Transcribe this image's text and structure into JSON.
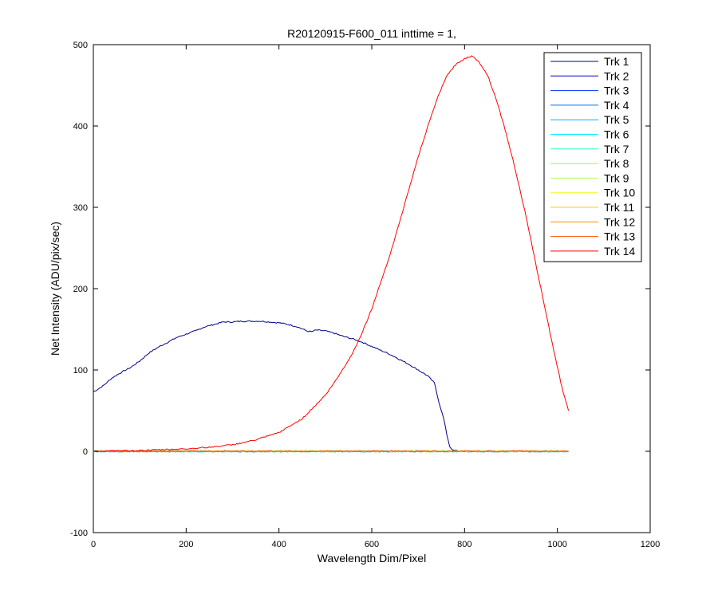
{
  "chart_data": {
    "type": "line",
    "title": "R20120915-F600_011 inttime = 1,",
    "xlabel": "Wavelength Dim/Pixel",
    "ylabel": "Net Intensity (ADU/pix/sec)",
    "xlim": [
      0,
      1200
    ],
    "ylim": [
      -100,
      500
    ],
    "xticks": [
      0,
      200,
      400,
      600,
      800,
      1000,
      1200
    ],
    "yticks": [
      -100,
      0,
      100,
      200,
      300,
      400,
      500
    ],
    "grid": false,
    "legend_position": "top-right",
    "series": [
      {
        "name": "Trk 1",
        "color": "#00008f",
        "points": [
          [
            0,
            73
          ],
          [
            20,
            80
          ],
          [
            40,
            90
          ],
          [
            60,
            97
          ],
          [
            80,
            103
          ],
          [
            100,
            111
          ],
          [
            120,
            121
          ],
          [
            140,
            128
          ],
          [
            160,
            134
          ],
          [
            180,
            140
          ],
          [
            200,
            144
          ],
          [
            220,
            148
          ],
          [
            240,
            153
          ],
          [
            260,
            156
          ],
          [
            280,
            159
          ],
          [
            300,
            159
          ],
          [
            320,
            160
          ],
          [
            340,
            160
          ],
          [
            360,
            160
          ],
          [
            380,
            159
          ],
          [
            400,
            158
          ],
          [
            420,
            156
          ],
          [
            440,
            153
          ],
          [
            460,
            148
          ],
          [
            470,
            147
          ],
          [
            480,
            149
          ],
          [
            500,
            148
          ],
          [
            520,
            145
          ],
          [
            540,
            141
          ],
          [
            560,
            138
          ],
          [
            580,
            134
          ],
          [
            600,
            129
          ],
          [
            620,
            124
          ],
          [
            640,
            119
          ],
          [
            660,
            113
          ],
          [
            680,
            107
          ],
          [
            700,
            100
          ],
          [
            720,
            93
          ],
          [
            735,
            84
          ],
          [
            745,
            60
          ],
          [
            755,
            40
          ],
          [
            762,
            20
          ],
          [
            768,
            6
          ],
          [
            775,
            1
          ],
          [
            800,
            0
          ],
          [
            1024,
            0
          ]
        ]
      },
      {
        "name": "Trk 2",
        "color": "#0000bf",
        "points": [
          [
            0,
            0
          ],
          [
            1024,
            0
          ]
        ]
      },
      {
        "name": "Trk 3",
        "color": "#0030ff",
        "points": [
          [
            0,
            0
          ],
          [
            1024,
            0
          ]
        ]
      },
      {
        "name": "Trk 4",
        "color": "#0070ff",
        "points": [
          [
            0,
            0
          ],
          [
            1024,
            0
          ]
        ]
      },
      {
        "name": "Trk 5",
        "color": "#00afff",
        "points": [
          [
            0,
            0
          ],
          [
            1024,
            0
          ]
        ]
      },
      {
        "name": "Trk 6",
        "color": "#00efff",
        "points": [
          [
            0,
            0
          ],
          [
            1024,
            0
          ]
        ]
      },
      {
        "name": "Trk 7",
        "color": "#30ffcf",
        "points": [
          [
            0,
            0
          ],
          [
            1024,
            0
          ]
        ]
      },
      {
        "name": "Trk 8",
        "color": "#70ff8f",
        "points": [
          [
            0,
            0
          ],
          [
            1024,
            0
          ]
        ]
      },
      {
        "name": "Trk 9",
        "color": "#afff50",
        "points": [
          [
            0,
            0
          ],
          [
            1024,
            0
          ]
        ]
      },
      {
        "name": "Trk 10",
        "color": "#efff10",
        "points": [
          [
            0,
            0
          ],
          [
            1024,
            0
          ]
        ]
      },
      {
        "name": "Trk 11",
        "color": "#ffcf00",
        "points": [
          [
            0,
            0
          ],
          [
            1024,
            0
          ]
        ]
      },
      {
        "name": "Trk 12",
        "color": "#ff8f00",
        "points": [
          [
            0,
            0
          ],
          [
            1024,
            0
          ]
        ]
      },
      {
        "name": "Trk 13",
        "color": "#ff5000",
        "points": [
          [
            0,
            0
          ],
          [
            1024,
            0
          ]
        ]
      },
      {
        "name": "Trk 14",
        "color": "#ff0000",
        "points": [
          [
            0,
            0
          ],
          [
            100,
            1
          ],
          [
            200,
            3
          ],
          [
            250,
            5
          ],
          [
            300,
            8
          ],
          [
            350,
            14
          ],
          [
            400,
            23
          ],
          [
            450,
            40
          ],
          [
            500,
            69
          ],
          [
            520,
            85
          ],
          [
            540,
            103
          ],
          [
            560,
            122
          ],
          [
            580,
            147
          ],
          [
            600,
            175
          ],
          [
            620,
            209
          ],
          [
            640,
            243
          ],
          [
            660,
            282
          ],
          [
            680,
            322
          ],
          [
            700,
            362
          ],
          [
            720,
            398
          ],
          [
            740,
            432
          ],
          [
            760,
            460
          ],
          [
            780,
            475
          ],
          [
            800,
            483
          ],
          [
            815,
            486
          ],
          [
            830,
            480
          ],
          [
            850,
            462
          ],
          [
            870,
            430
          ],
          [
            890,
            390
          ],
          [
            910,
            345
          ],
          [
            930,
            295
          ],
          [
            950,
            240
          ],
          [
            970,
            185
          ],
          [
            990,
            130
          ],
          [
            1010,
            78
          ],
          [
            1024,
            50
          ]
        ]
      }
    ]
  }
}
